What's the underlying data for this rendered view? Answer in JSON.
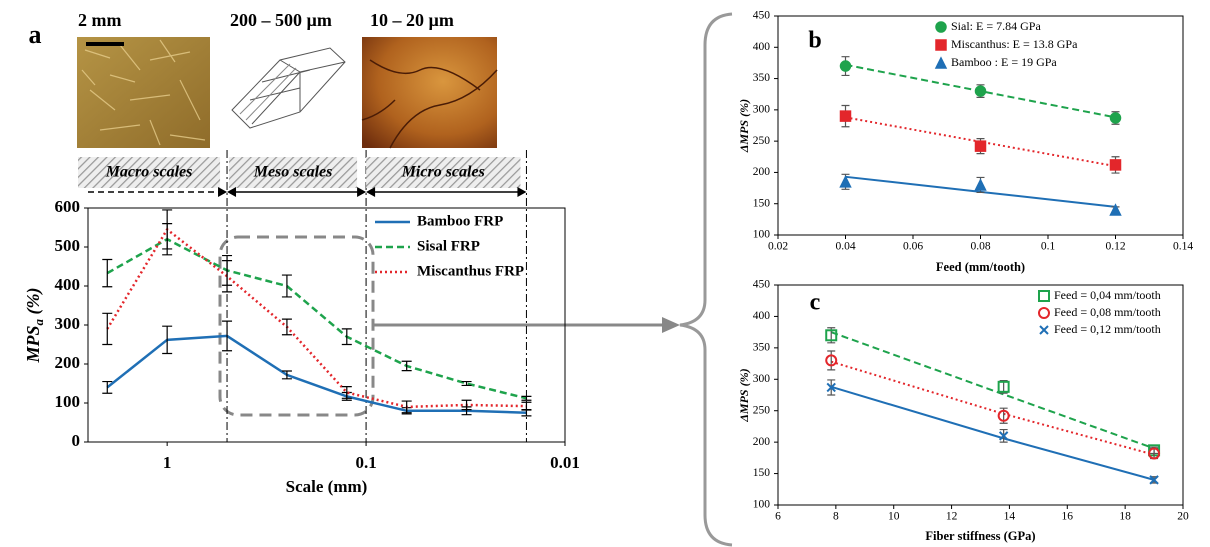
{
  "chart_data": [
    {
      "type": "line",
      "panel": "a",
      "image_labels": [
        "2 mm",
        "200 – 500 µm",
        "10 – 20 µm"
      ],
      "scale_labels": [
        "Macro scales",
        "Meso scales",
        "Micro scales"
      ],
      "scale_boundaries": [
        0.5,
        0.1,
        0.015625
      ],
      "xlabel": "Scale (mm)",
      "ylabel": {
        "text": "MPS",
        "sub": "a",
        "unit": " (%)"
      },
      "xscale": "log",
      "xlim": [
        2.5,
        0.01
      ],
      "xticks": [
        1,
        0.1,
        0.01
      ],
      "ylim": [
        0,
        600
      ],
      "yticks": [
        0,
        100,
        200,
        300,
        400,
        500,
        600
      ],
      "legend": "upper right",
      "x": [
        2,
        1,
        0.5,
        0.25,
        0.125,
        0.0625,
        0.03125,
        0.015625
      ],
      "series": [
        {
          "name": "Bamboo FRP",
          "color": "#1f6fb5",
          "line": "solid",
          "values": [
            140,
            262,
            272,
            172,
            117,
            80,
            80,
            75
          ],
          "errors": [
            15,
            35,
            38,
            10,
            10,
            8,
            10,
            8
          ]
        },
        {
          "name": "Sisal FRP",
          "color": "#1ea34c",
          "line": "dashed",
          "values": [
            433,
            520,
            440,
            400,
            270,
            195,
            150,
            112
          ],
          "errors": [
            35,
            40,
            38,
            28,
            20,
            12,
            5,
            5
          ]
        },
        {
          "name": "Miscanthus FRP",
          "color": "#e3262b",
          "line": "dotted",
          "values": [
            290,
            545,
            425,
            295,
            127,
            90,
            95,
            92
          ],
          "errors": [
            40,
            50,
            40,
            20,
            15,
            15,
            12,
            10
          ]
        }
      ]
    },
    {
      "type": "scatter",
      "panel": "b",
      "xlabel": "Feed (mm/tooth)",
      "ylabel": "ΔMPS (%)",
      "xlim": [
        0.02,
        0.14
      ],
      "xticks": [
        0.02,
        0.04,
        0.06,
        0.08,
        0.1,
        0.12,
        0.14
      ],
      "ylim": [
        100,
        450
      ],
      "yticks": [
        100,
        150,
        200,
        250,
        300,
        350,
        400,
        450
      ],
      "legend": "upper right",
      "x": [
        0.04,
        0.08,
        0.12
      ],
      "series": [
        {
          "name": "Sial: E = 7.84 GPa",
          "color": "#1ea34c",
          "marker": "circle",
          "line": "dashed",
          "values": [
            370,
            330,
            287
          ],
          "errors": [
            15,
            10,
            10
          ],
          "fit": [
            372,
            330,
            288
          ]
        },
        {
          "name": "Miscanthus: E = 13.8 GPa",
          "color": "#e3262b",
          "marker": "square",
          "line": "dotted",
          "values": [
            290,
            242,
            212
          ],
          "errors": [
            17,
            12,
            13
          ],
          "fit": [
            288,
            249,
            210
          ]
        },
        {
          "name": "Bamboo : E = 19 GPa",
          "color": "#1f6fb5",
          "marker": "triangle",
          "line": "solid",
          "values": [
            185,
            180,
            140
          ],
          "errors": [
            12,
            12,
            5
          ],
          "fit": [
            193,
            169,
            145
          ]
        }
      ]
    },
    {
      "type": "scatter",
      "panel": "c",
      "xlabel": "Fiber stiffness (GPa)",
      "ylabel": "ΔMPS (%)",
      "xlim": [
        6,
        20
      ],
      "xticks": [
        6,
        8,
        10,
        12,
        14,
        16,
        18,
        20
      ],
      "ylim": [
        100,
        450
      ],
      "yticks": [
        100,
        150,
        200,
        250,
        300,
        350,
        400,
        450
      ],
      "legend": "upper right",
      "x": [
        7.84,
        13.8,
        19
      ],
      "series": [
        {
          "name": "Feed = 0,04 mm/tooth",
          "color": "#1ea34c",
          "marker": "open-square",
          "line": "dashed",
          "values": [
            370,
            288,
            187
          ],
          "errors": [
            12,
            10,
            5
          ],
          "fit": [
            375,
            276,
            190
          ]
        },
        {
          "name": "Feed = 0,08 mm/tooth",
          "color": "#e3262b",
          "marker": "open-circle",
          "line": "dotted",
          "values": [
            330,
            242,
            182
          ],
          "errors": [
            15,
            12,
            8
          ],
          "fit": [
            328,
            245,
            180
          ]
        },
        {
          "name": "Feed = 0,12 mm/tooth",
          "color": "#1f6fb5",
          "marker": "x",
          "line": "solid",
          "values": [
            287,
            210,
            140
          ],
          "errors": [
            12,
            10,
            5
          ],
          "fit": [
            288,
            206,
            140
          ]
        }
      ]
    }
  ]
}
